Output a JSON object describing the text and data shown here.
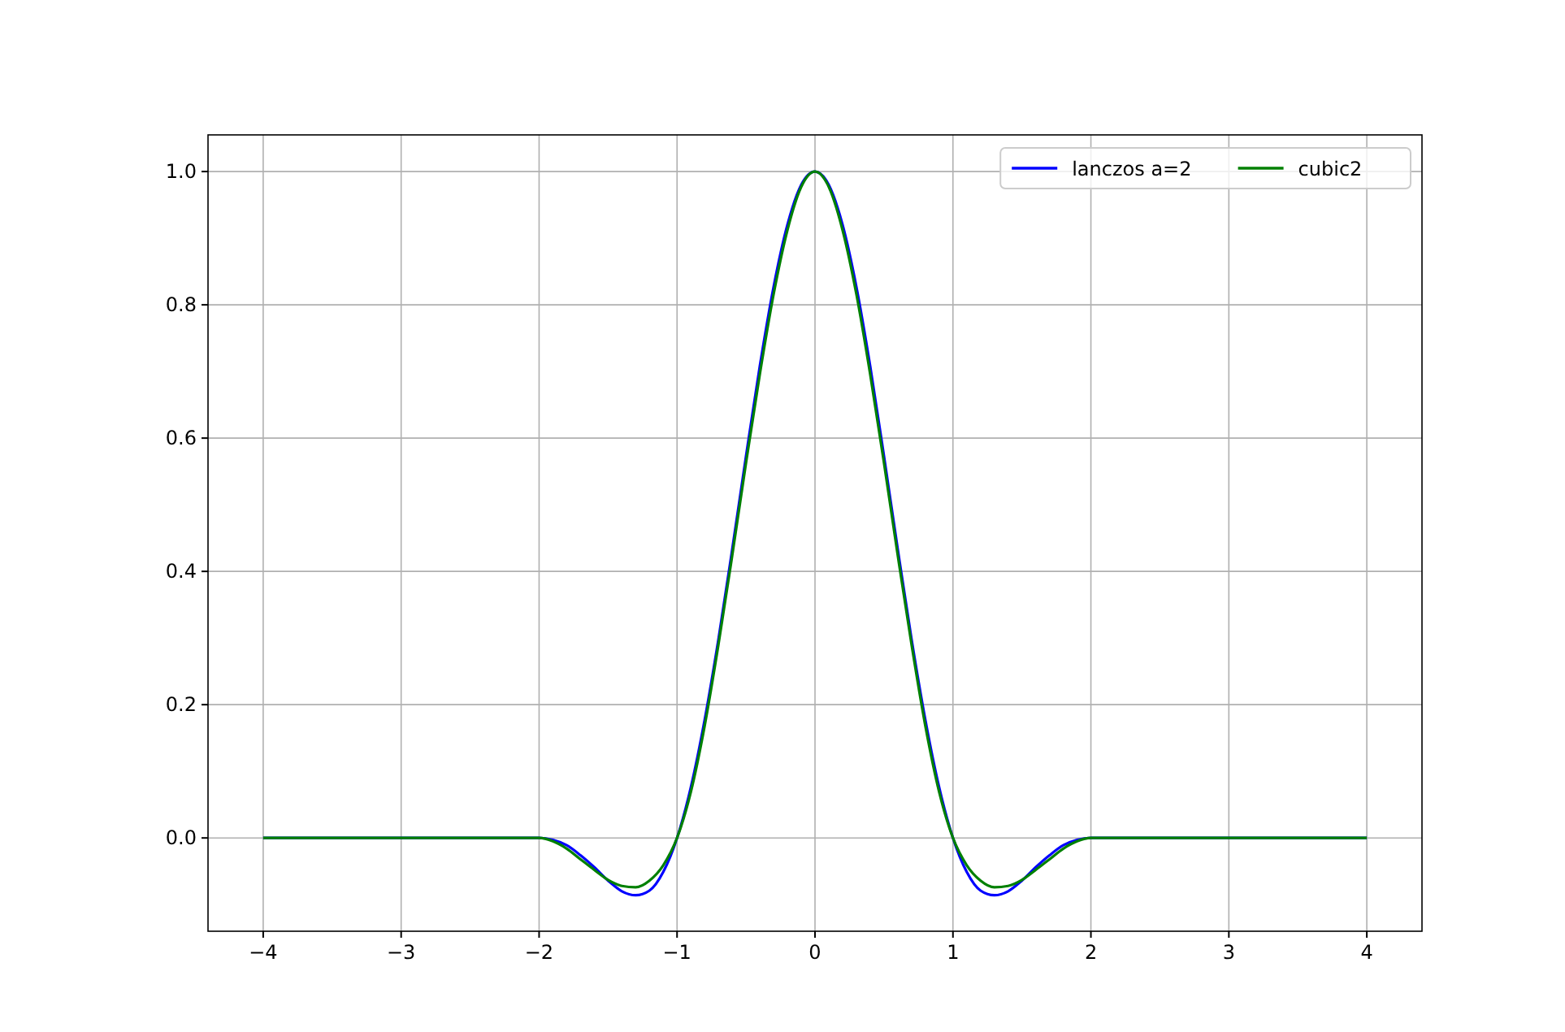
{
  "chart_data": {
    "type": "line",
    "x": [
      -4,
      -3,
      -2,
      -1.9,
      -1.8,
      -1.7,
      -1.6,
      -1.5,
      -1.4,
      -1.3,
      -1.2,
      -1.1,
      -1,
      -0.9,
      -0.8,
      -0.7,
      -0.6,
      -0.5,
      -0.4,
      -0.3,
      -0.2,
      -0.1,
      0,
      0.1,
      0.2,
      0.3,
      0.4,
      0.5,
      0.6,
      0.7,
      0.8,
      0.9,
      1,
      1.1,
      1.2,
      1.3,
      1.4,
      1.5,
      1.6,
      1.7,
      1.8,
      1.9,
      2,
      3,
      4
    ],
    "series": [
      {
        "name": "lanczos a=2",
        "color": "#0000ff",
        "values": [
          0,
          0,
          0,
          -0.003,
          -0.011,
          -0.026,
          -0.044,
          -0.064,
          -0.08,
          -0.086,
          -0.079,
          -0.051,
          0,
          0.076,
          0.177,
          0.298,
          0.433,
          0.573,
          0.708,
          0.827,
          0.92,
          0.98,
          1,
          0.98,
          0.92,
          0.827,
          0.708,
          0.573,
          0.433,
          0.298,
          0.177,
          0.076,
          0,
          -0.051,
          -0.079,
          -0.086,
          -0.08,
          -0.064,
          -0.044,
          -0.026,
          -0.011,
          -0.003,
          0,
          0,
          0
        ]
      },
      {
        "name": "cubic2",
        "color": "#008000",
        "values": [
          0,
          0,
          0,
          -0.005,
          -0.016,
          -0.032,
          -0.048,
          -0.063,
          -0.072,
          -0.074,
          -0.064,
          -0.041,
          0,
          0.069,
          0.168,
          0.29,
          0.424,
          0.563,
          0.696,
          0.816,
          0.912,
          0.977,
          1,
          0.977,
          0.912,
          0.816,
          0.696,
          0.563,
          0.424,
          0.29,
          0.168,
          0.069,
          0,
          -0.041,
          -0.064,
          -0.074,
          -0.072,
          -0.063,
          -0.048,
          -0.032,
          -0.016,
          -0.005,
          0,
          0,
          0
        ]
      }
    ],
    "xlim": [
      -4.4,
      4.4
    ],
    "xticks": [
      {
        "value": -4,
        "label": "−4"
      },
      {
        "value": -3,
        "label": "−3"
      },
      {
        "value": -2,
        "label": "−2"
      },
      {
        "value": -1,
        "label": "−1"
      },
      0,
      1,
      2,
      3,
      4
    ],
    "ylim": [
      -0.14,
      1.055
    ],
    "yticks": [
      {
        "value": 0,
        "label": "0.0"
      },
      {
        "value": 0.2,
        "label": "0.2"
      },
      {
        "value": 0.4,
        "label": "0.4"
      },
      {
        "value": 0.6,
        "label": "0.6"
      },
      {
        "value": 0.8,
        "label": "0.8"
      },
      {
        "value": 1,
        "label": "1.0"
      }
    ],
    "grid": true,
    "legend": "top right",
    "line_style": "solid"
  }
}
